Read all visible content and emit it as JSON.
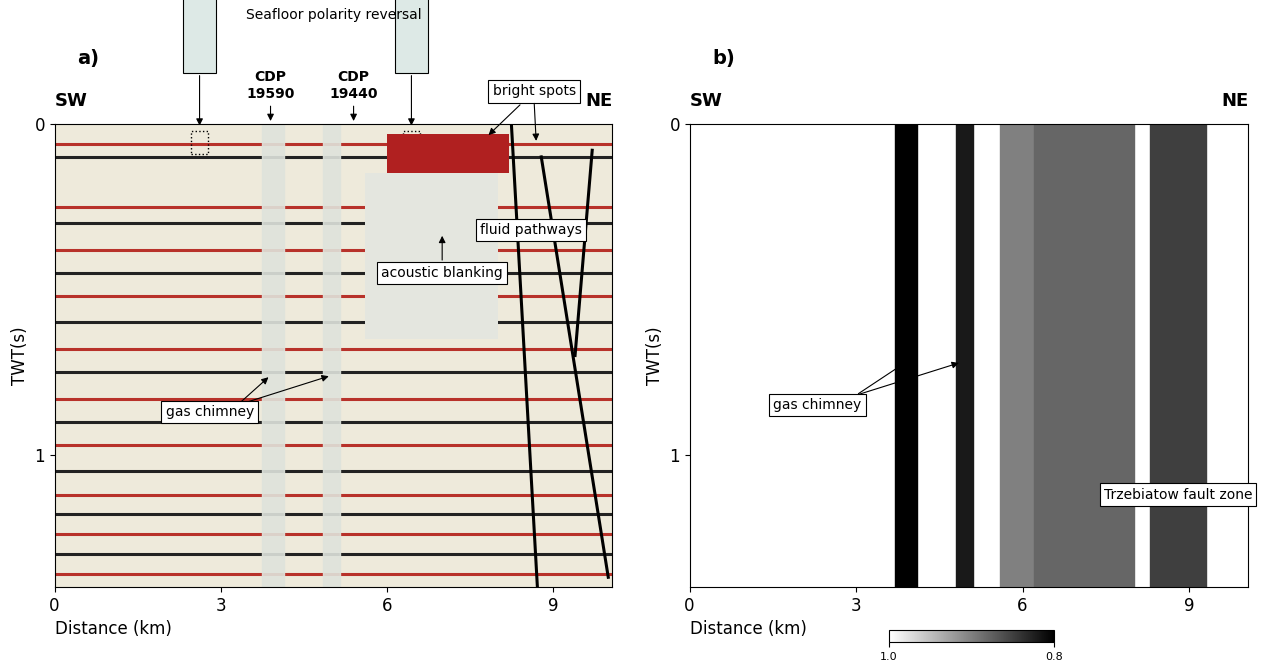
{
  "chart_data": [
    {
      "type": "seismic_section",
      "panel": "a)",
      "left_label": "SW",
      "right_label": "NE",
      "xlabel": "Distance (km)",
      "ylabel": "TWT(s)",
      "xlim": [
        0,
        10.07
      ],
      "ylim": [
        1.4,
        0
      ],
      "xticks": [
        0,
        3,
        6,
        9
      ],
      "yticks": [
        0,
        1
      ],
      "annotations": {
        "polarity": "Seafloor polarity reversal",
        "cdp": [
          "CDP\n19590",
          "CDP\n19440"
        ],
        "cdp_x": [
          3.9,
          5.4
        ],
        "bright_spots": "bright spots",
        "fluid_pathways": "fluid pathways",
        "acoustic_blanking": "acoustic blanking",
        "gas_chimney": "gas chimney"
      },
      "reflectors": [
        0.06,
        0.1,
        0.25,
        0.3,
        0.38,
        0.45,
        0.52,
        0.6,
        0.68,
        0.75,
        0.83,
        0.9,
        0.97,
        1.05,
        1.12,
        1.18,
        1.24,
        1.3,
        1.36
      ],
      "chimneys": [
        [
          3.75,
          4.15
        ],
        [
          4.85,
          5.15
        ]
      ],
      "bright_spot_zone": {
        "x": [
          6.0,
          8.2
        ],
        "y": [
          0.03,
          0.15
        ]
      },
      "blanking_zone": {
        "x": [
          5.6,
          8.0
        ],
        "y": [
          0.15,
          0.65
        ]
      },
      "faults": [
        [
          [
            8.25,
            0.0
          ],
          [
            8.72,
            1.4
          ]
        ],
        [
          [
            8.79,
            0.1
          ],
          [
            10.0,
            1.37
          ]
        ],
        [
          [
            9.71,
            0.08
          ],
          [
            9.4,
            0.7
          ]
        ]
      ]
    },
    {
      "type": "attribute_section",
      "panel": "b)",
      "left_label": "SW",
      "right_label": "NE",
      "xlabel": "Distance (km)",
      "ylabel": "TWT(s)",
      "xlim": [
        0,
        10.07
      ],
      "ylim": [
        1.4,
        0
      ],
      "xticks": [
        0,
        3,
        6,
        9
      ],
      "yticks": [
        0,
        1
      ],
      "zones": [
        {
          "x": [
            3.7,
            4.1
          ],
          "value": 0.8
        },
        {
          "x": [
            4.8,
            5.1
          ],
          "value": 0.82
        },
        {
          "x": [
            5.6,
            6.2
          ],
          "value": 0.9
        },
        {
          "x": [
            6.2,
            8.0
          ],
          "value": 0.88
        },
        {
          "x": [
            8.3,
            9.3
          ],
          "value": 0.85
        }
      ],
      "colorbar": {
        "range": [
          1.0,
          0.8
        ],
        "ticks": [
          1.0,
          0.8
        ]
      },
      "annotations": {
        "gas_chimney": "gas chimney",
        "fault_zone": "Trzebiatow fault zone"
      }
    }
  ]
}
